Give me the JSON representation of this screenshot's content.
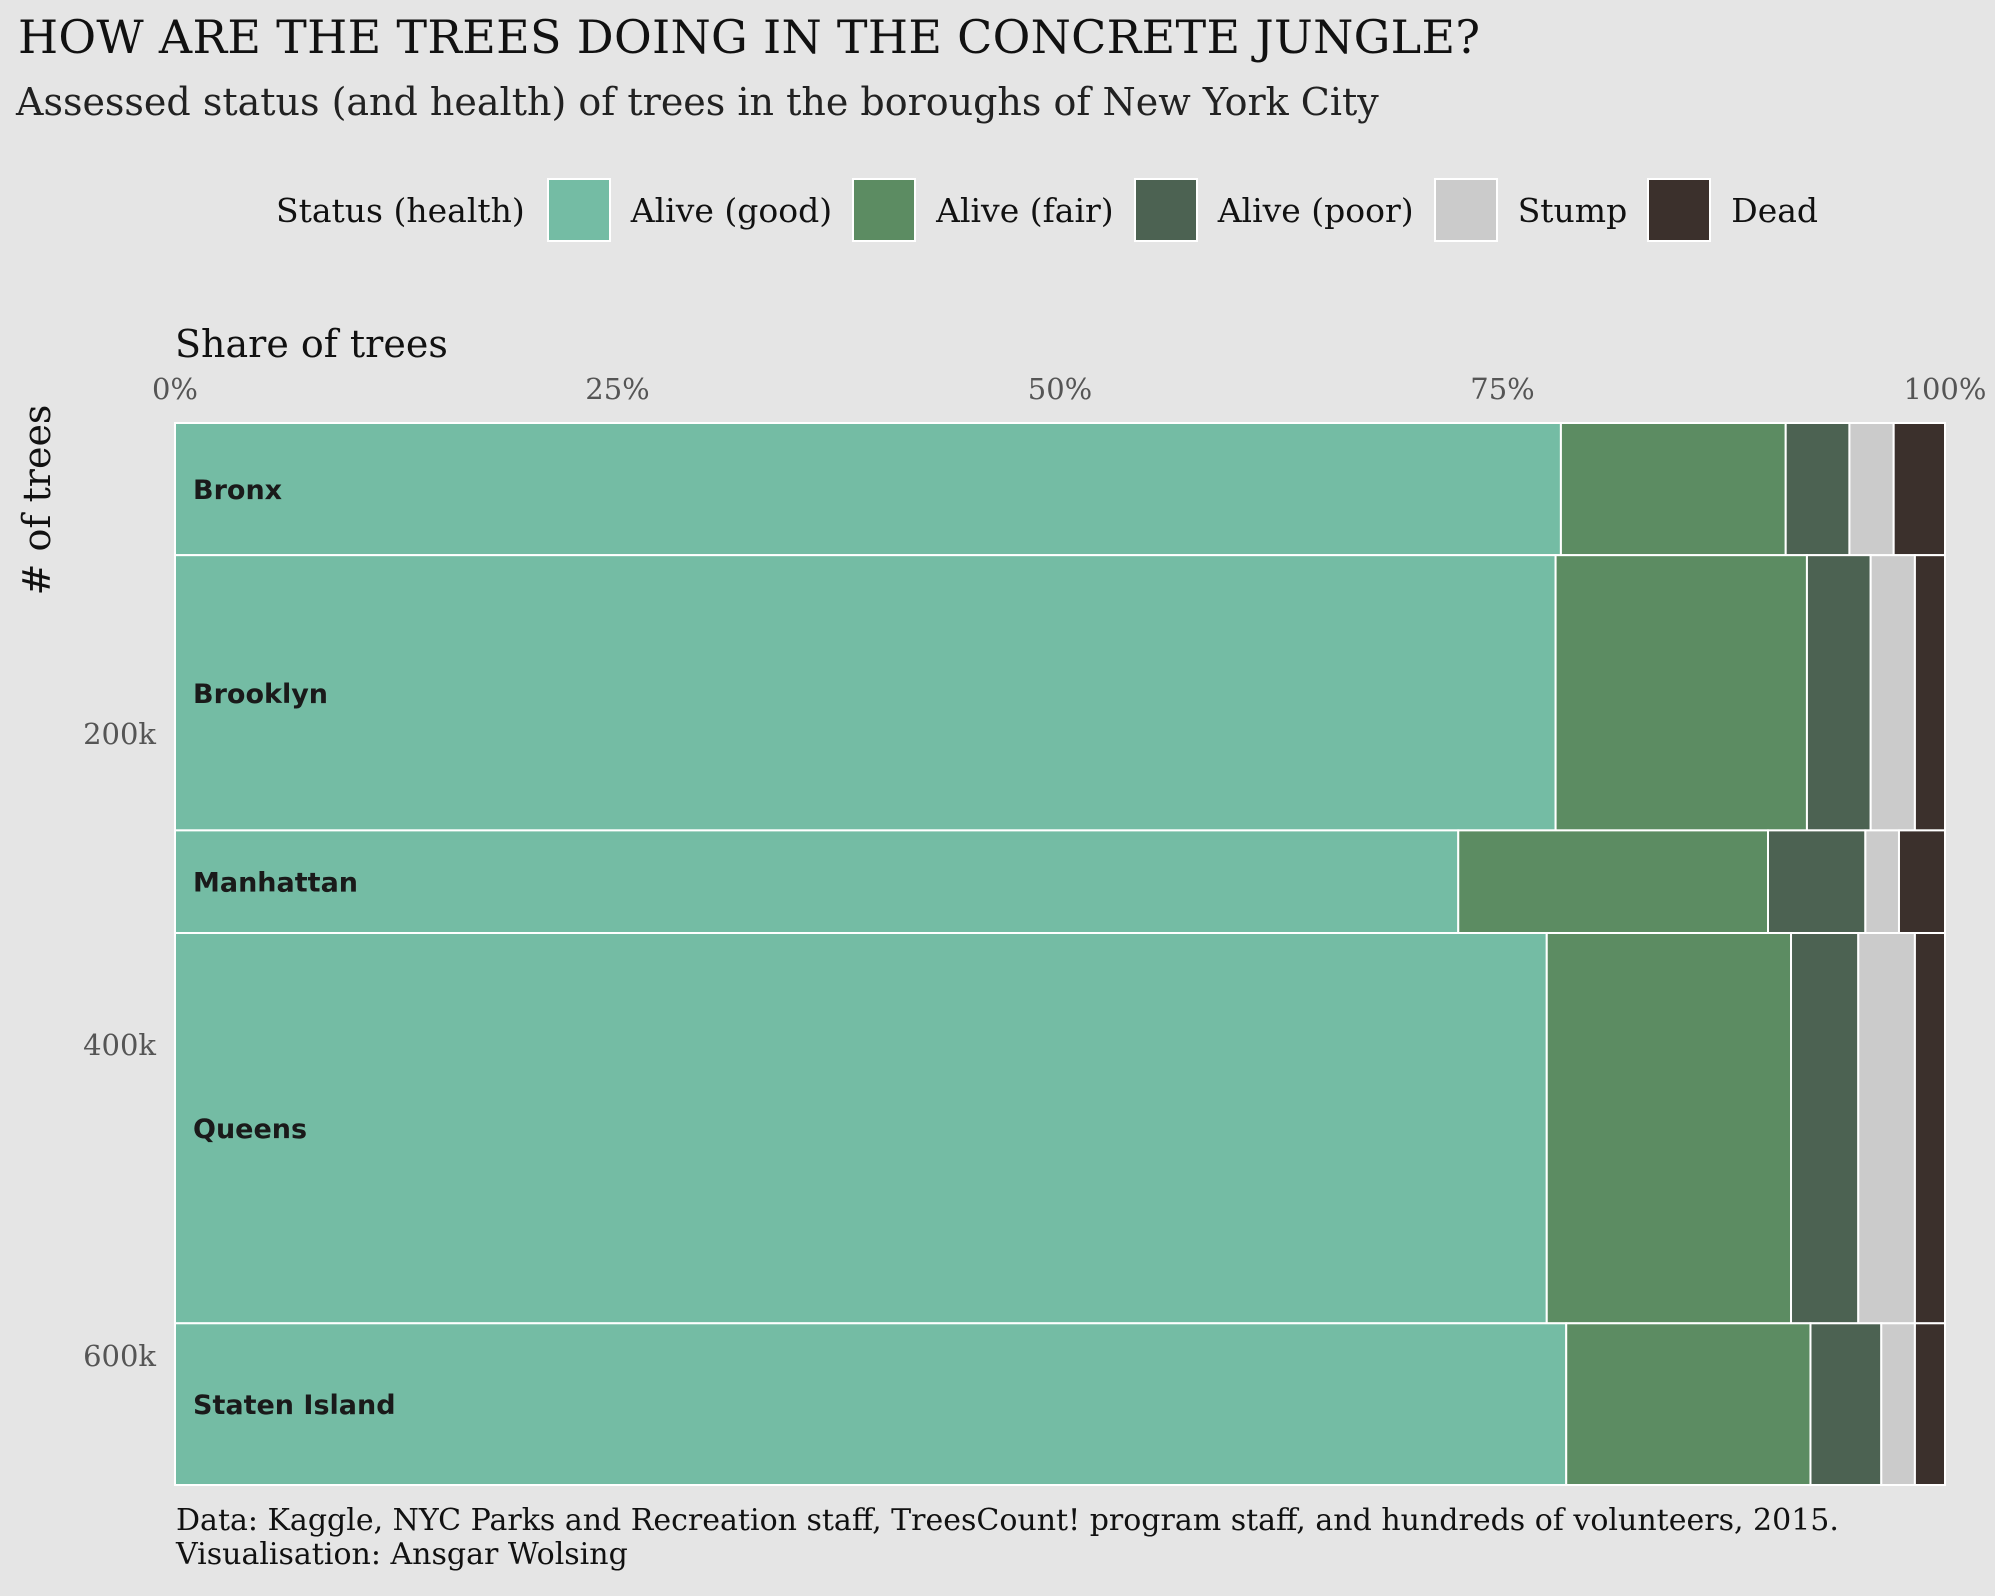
{
  "title": "HOW ARE THE TREES DOING IN THE CONCRETE JUNGLE?",
  "subtitle": "Assessed status (and health) of trees in the boroughs of New York City",
  "legend": {
    "title": "Status (health)",
    "items": [
      {
        "label": "Alive (good)",
        "color": "#74bca4"
      },
      {
        "label": "Alive (fair)",
        "color": "#5c8c62"
      },
      {
        "label": "Alive (poor)",
        "color": "#4c6252"
      },
      {
        "label": "Stump",
        "color": "#cbcbcb"
      },
      {
        "label": "Dead",
        "color": "#3b302c"
      }
    ]
  },
  "footer": {
    "line1": "Data: Kaggle, NYC Parks and Recreation staff, TreesCount! program staff, and hundreds of volunteers, 2015.",
    "line2": "Visualisation: Ansgar Wolsing"
  },
  "chart_data": {
    "type": "bar",
    "title": "HOW ARE THE TREES DOING IN THE CONCRETE JUNGLE?",
    "subtitle": "Assessed status (and health) of trees in the boroughs of New York City",
    "xlabel": "Share of trees",
    "ylabel": "# of trees",
    "x_ticks": [
      "0%",
      "25%",
      "50%",
      "75%",
      "100%"
    ],
    "xlim": [
      0,
      100
    ],
    "y_ticks": [
      {
        "value": 200000,
        "label": "200k"
      },
      {
        "value": 400000,
        "label": "400k"
      },
      {
        "value": 600000,
        "label": "600k"
      }
    ],
    "ylim": [
      0,
      683000
    ],
    "legend_position": "top",
    "categories": [
      "Bronx",
      "Brooklyn",
      "Manhattan",
      "Queens",
      "Staten Island"
    ],
    "totals": [
      85000,
      177000,
      66000,
      251000,
      104000
    ],
    "series": [
      {
        "name": "Alive (good)",
        "values": [
          78.3,
          78.0,
          72.5,
          77.5,
          78.6
        ]
      },
      {
        "name": "Alive (fair)",
        "values": [
          12.7,
          14.2,
          17.5,
          13.8,
          13.8
        ]
      },
      {
        "name": "Alive (poor)",
        "values": [
          3.6,
          3.6,
          5.5,
          3.8,
          4.0
        ]
      },
      {
        "name": "Stump",
        "values": [
          2.5,
          2.5,
          1.9,
          3.2,
          1.9
        ]
      },
      {
        "name": "Dead",
        "values": [
          2.9,
          1.7,
          2.6,
          1.7,
          1.7
        ]
      }
    ]
  }
}
